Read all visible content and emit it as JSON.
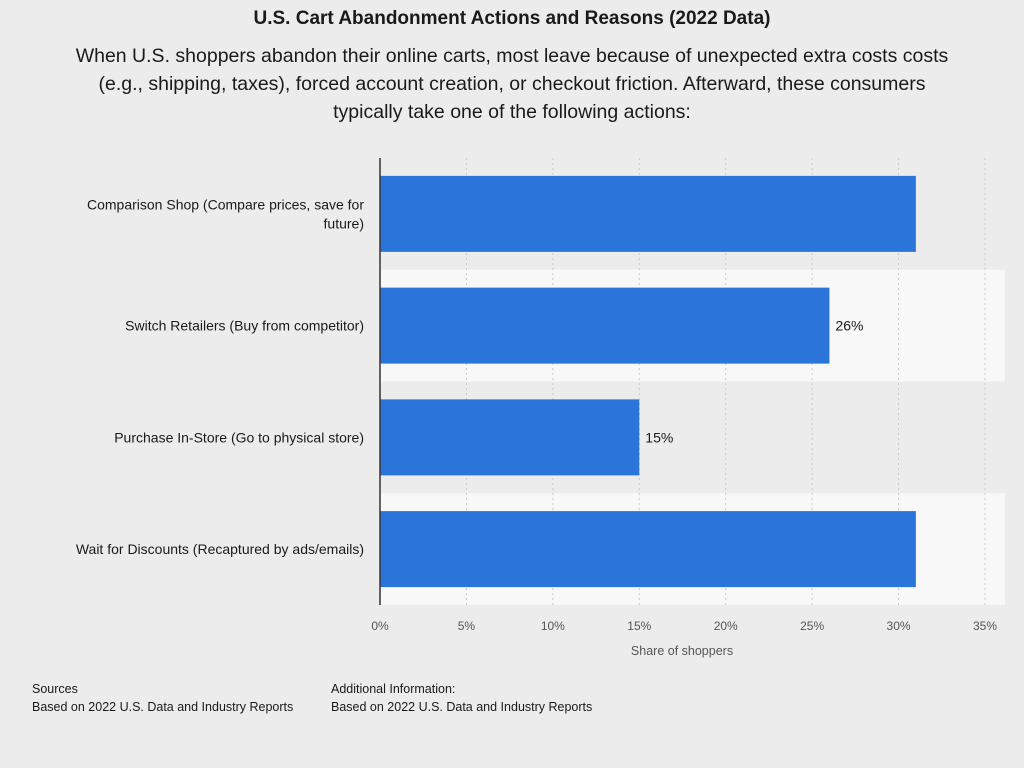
{
  "header": {
    "title": "U.S. Cart Abandonment Actions and Reasons (2022 Data)",
    "subtitle": "When U.S. shoppers abandon their online carts, most leave because of unexpected extra costs costs (e.g., shipping, taxes), forced account creation, or checkout friction. Afterward, these consumers typically take one of the following actions:"
  },
  "chart_data": {
    "type": "bar",
    "orientation": "horizontal",
    "categories": [
      [
        "Comparison Shop (Compare prices, save for",
        "future)"
      ],
      [
        "Switch Retailers (Buy from competitor)"
      ],
      [
        "Purchase In-Store (Go to physical store)"
      ],
      [
        "Wait for Discounts (Recaptured by ads/emails)"
      ]
    ],
    "values": [
      31,
      26,
      15,
      31
    ],
    "data_labels": [
      "",
      "26%",
      "15%",
      ""
    ],
    "xlabel": "Share of shoppers",
    "xlim": [
      0,
      35
    ],
    "ticks": [
      0,
      5,
      10,
      15,
      20,
      25,
      30,
      35
    ],
    "tick_labels": [
      "0%",
      "5%",
      "10%",
      "15%",
      "20%",
      "25%",
      "30%",
      "35%"
    ],
    "grid": "vertical-dashed",
    "bar_color": "#2b74d9",
    "band_color": "#f8f8f8",
    "background_color": "#ececec"
  },
  "footer": {
    "sources_heading": "Sources",
    "sources_text": "Based on 2022 U.S. Data and Industry Reports",
    "additional_heading": "Additional Information:",
    "additional_text": "Based on 2022 U.S. Data and Industry Reports"
  }
}
